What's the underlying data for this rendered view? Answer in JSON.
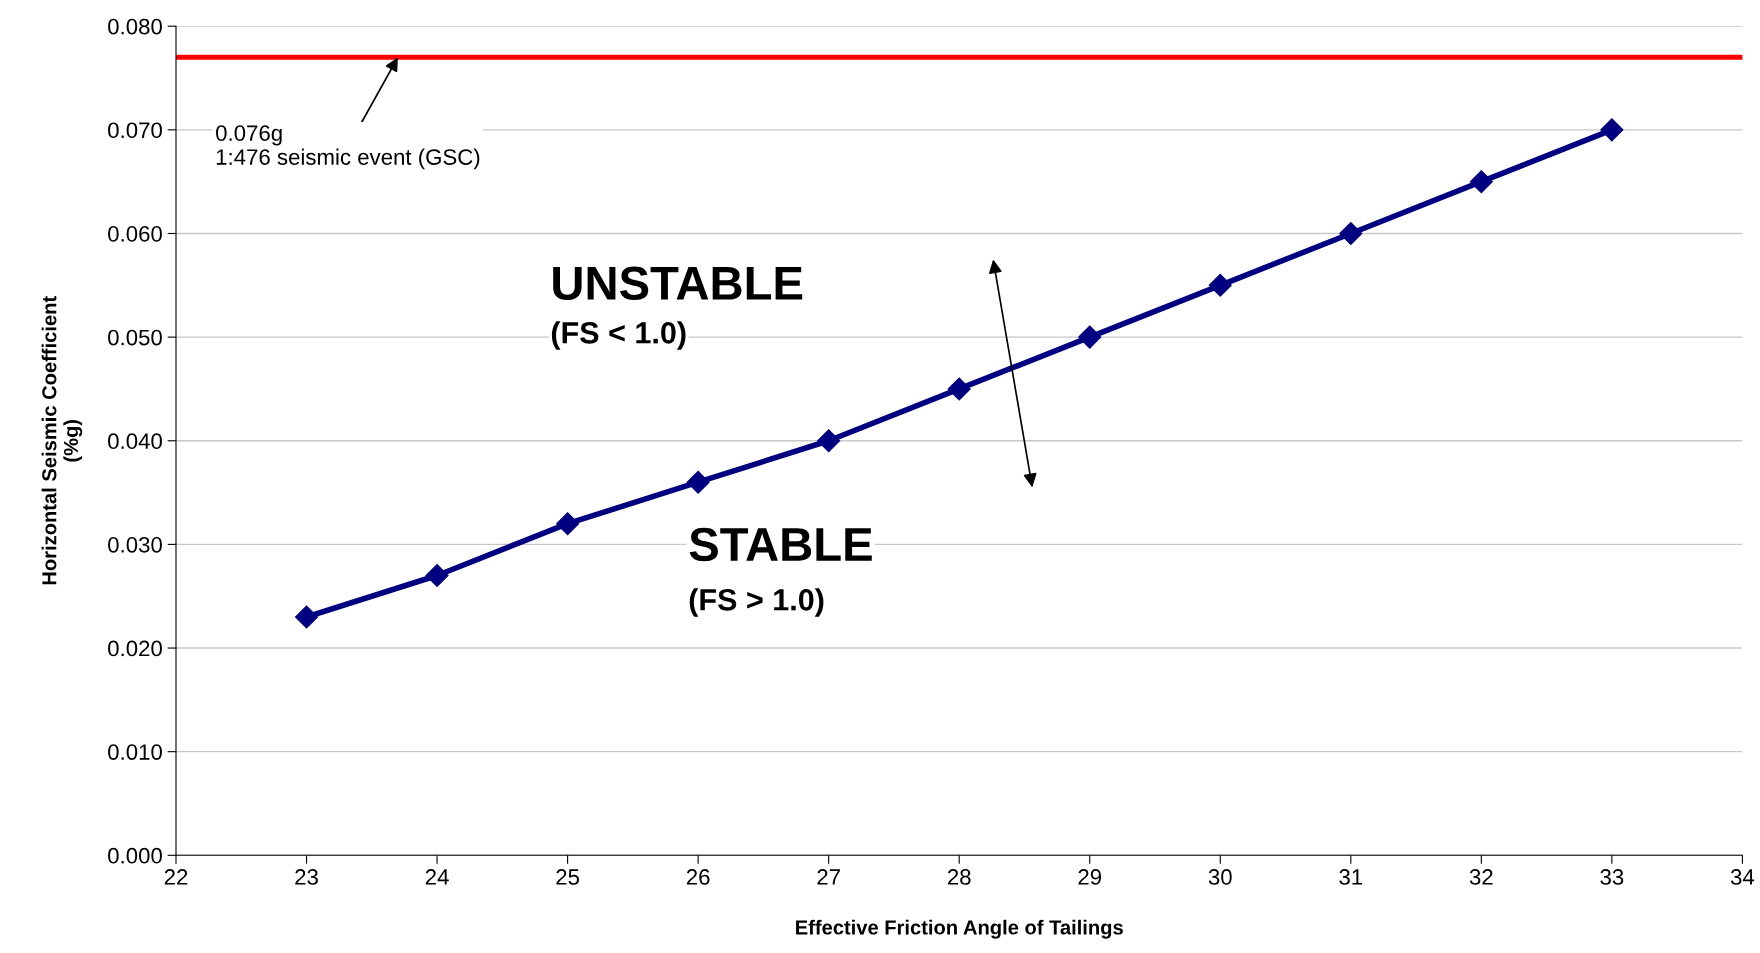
{
  "chart_data": {
    "type": "line",
    "xlabel": "Effective Friction Angle of Tailings",
    "ylabel": "Horizontal Seismic Coefficient\n(%g)",
    "x": [
      23,
      24,
      25,
      26,
      27,
      28,
      29,
      30,
      31,
      32,
      33
    ],
    "series": [
      {
        "color": "#000080",
        "values": [
          0.023,
          0.027,
          0.032,
          0.036,
          0.04,
          0.045,
          0.05,
          0.055,
          0.06,
          0.065,
          0.07
        ]
      }
    ],
    "marker": "diamond",
    "line_style": "solid",
    "grid": "y",
    "legend": false,
    "xlim": [
      22,
      34
    ],
    "xticks": [
      22,
      23,
      24,
      25,
      26,
      27,
      28,
      29,
      30,
      31,
      32,
      33,
      34
    ],
    "ylim": [
      0,
      0.08
    ],
    "yticks": [
      {
        "value": 0,
        "label": "0.000"
      },
      {
        "value": 0.01,
        "label": "0.010"
      },
      {
        "value": 0.02,
        "label": "0.020"
      },
      {
        "value": 0.03,
        "label": "0.030"
      },
      {
        "value": 0.04,
        "label": "0.040"
      },
      {
        "value": 0.05,
        "label": "0.050"
      },
      {
        "value": 0.06,
        "label": "0.060"
      },
      {
        "value": 0.07,
        "label": "0.070"
      },
      {
        "value": 0.08,
        "label": "0.080"
      }
    ],
    "ref_lines": [
      {
        "axis": "y",
        "value": 0.077,
        "color": "#ff0000",
        "line_style": "solid"
      }
    ],
    "annotations": [
      {
        "text": "0.076g\n1:476 seismic event (GSC)",
        "x": 23.7,
        "y": 0.077
      },
      "UNSTABLE",
      "(FS < 1.0)",
      "STABLE",
      "(FS > 1.0)"
    ]
  }
}
